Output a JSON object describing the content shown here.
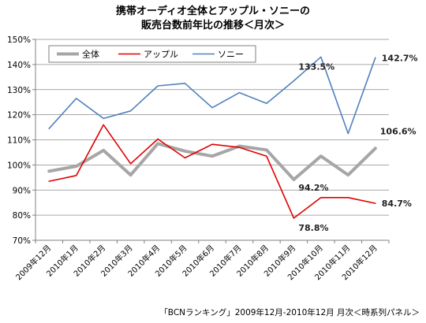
{
  "chart_data": {
    "type": "line",
    "title": [
      "携帯オーディオ全体とアップル・ソニーの",
      "販売台数前年比の推移＜月次＞"
    ],
    "categories": [
      "2009年12月",
      "2010年1月",
      "2010年2月",
      "2010年3月",
      "2010年4月",
      "2010年5月",
      "2010年6月",
      "2010年7月",
      "2010年8月",
      "2010年9月",
      "2010年10月",
      "2010年11月",
      "2010年12月"
    ],
    "ylim": [
      70,
      150
    ],
    "yticks": [
      "70%",
      "80%",
      "90%",
      "100%",
      "110%",
      "120%",
      "130%",
      "140%",
      "150%"
    ],
    "grid": true,
    "legend_position": "top-left",
    "series": [
      {
        "name": "全体",
        "color": "#a6a6a6",
        "width": 4,
        "values": [
          97.5,
          99.5,
          105.8,
          96.0,
          108.5,
          105.5,
          103.5,
          107.5,
          106.0,
          94.2,
          103.5,
          96.0,
          106.6
        ]
      },
      {
        "name": "アップル",
        "color": "#e00000",
        "width": 1.6,
        "values": [
          93.5,
          95.8,
          116.0,
          100.5,
          110.3,
          102.8,
          108.2,
          107.0,
          103.5,
          78.8,
          87.0,
          87.0,
          84.7
        ]
      },
      {
        "name": "ソニー",
        "color": "#4f81bd",
        "width": 1.6,
        "values": [
          114.5,
          126.5,
          118.5,
          121.5,
          131.5,
          132.5,
          122.8,
          128.8,
          124.5,
          133.5,
          143.0,
          112.5,
          142.7
        ]
      }
    ],
    "annotations": [
      {
        "text": "142.7%",
        "series": "ソニー",
        "index": 12
      },
      {
        "text": "133.5%",
        "series": "ソニー",
        "index": 9
      },
      {
        "text": "106.6%",
        "series": "全体",
        "index": 12
      },
      {
        "text": "94.2%",
        "series": "全体",
        "index": 9
      },
      {
        "text": "84.7%",
        "series": "アップル",
        "index": 12
      },
      {
        "text": "78.8%",
        "series": "アップル",
        "index": 9
      }
    ],
    "source": "「BCNランキング」2009年12月-2010年12月 月次＜時系列パネル＞"
  }
}
